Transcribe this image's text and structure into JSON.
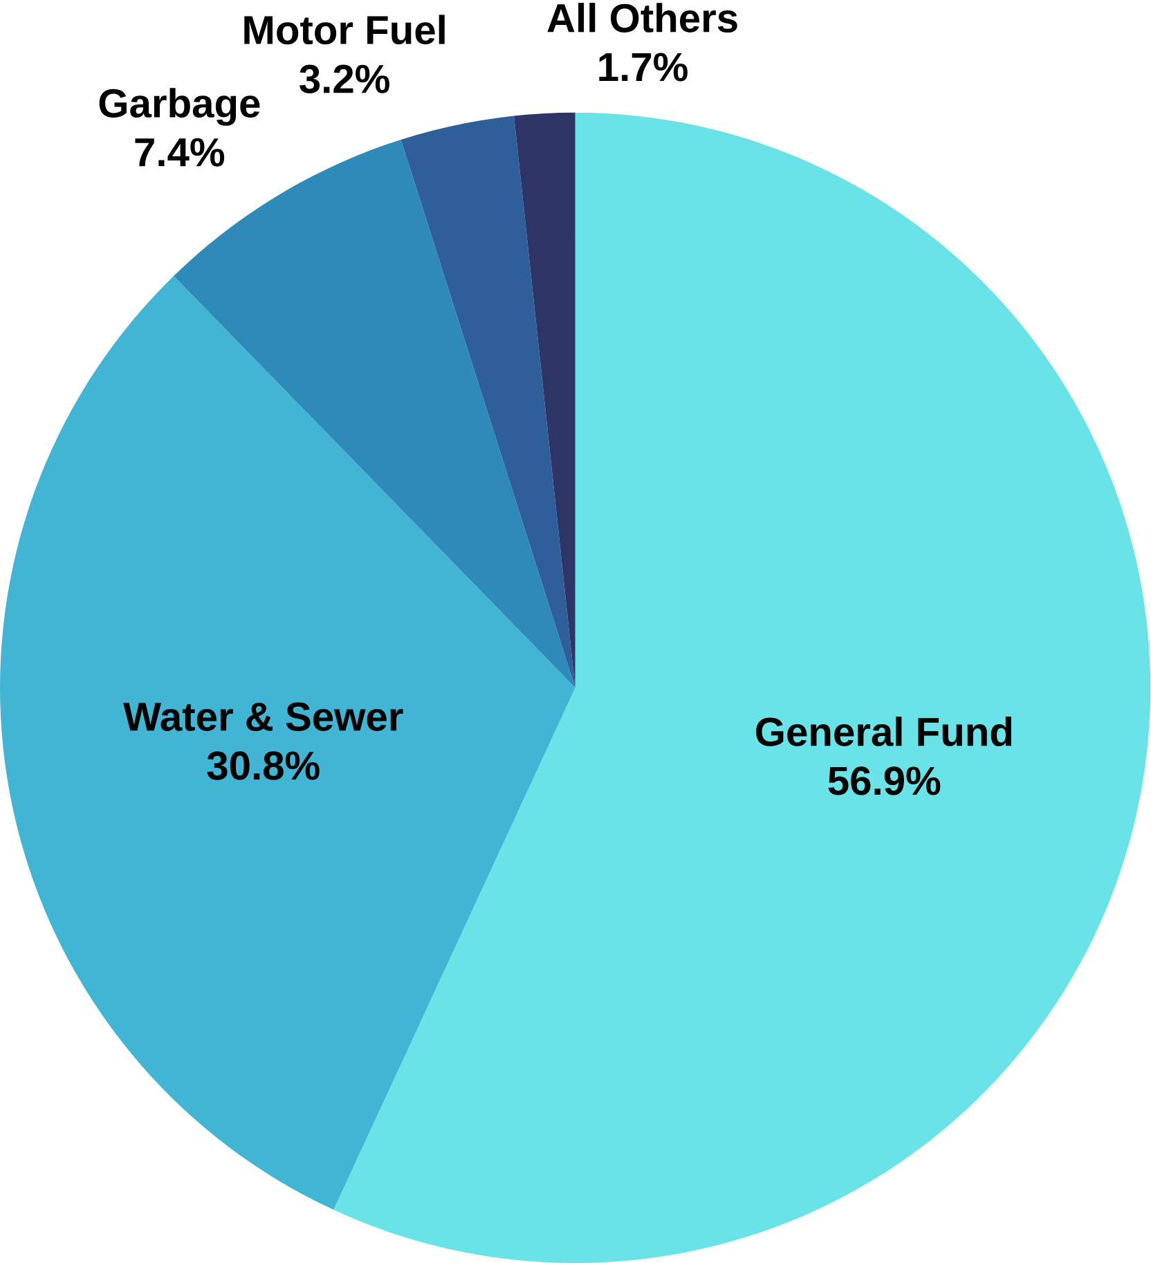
{
  "chart_data": {
    "type": "pie",
    "categories": [
      "General Fund",
      "Water & Sewer",
      "Garbage",
      "Motor Fuel",
      "All Others"
    ],
    "values": [
      56.9,
      30.8,
      7.4,
      3.2,
      1.7
    ],
    "value_labels": [
      "56.9%",
      "30.8%",
      "7.4%",
      "3.2%",
      "1.7%"
    ],
    "colors": [
      "#6ae3e8",
      "#42b4d4",
      "#2e8ab8",
      "#2e5f9a",
      "#2d3566"
    ]
  }
}
